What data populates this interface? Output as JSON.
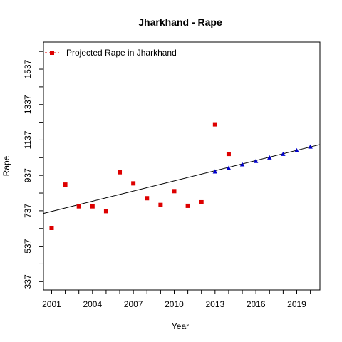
{
  "chart_data": {
    "type": "scatter",
    "title": "Jharkhand  -  Rape",
    "xlabel": "Year",
    "ylabel": "Rape",
    "xlim": [
      2000.4,
      2020.7
    ],
    "ylim": [
      290,
      1690
    ],
    "x_ticks": [
      2001,
      2002,
      2003,
      2004,
      2005,
      2006,
      2007,
      2008,
      2009,
      2010,
      2011,
      2012,
      2013,
      2014,
      2015,
      2016,
      2017,
      2018,
      2019,
      2020
    ],
    "x_tick_labels": [
      "2001",
      "2004",
      "2007",
      "2010",
      "2013",
      "2016",
      "2019"
    ],
    "x_tick_label_values": [
      2001,
      2004,
      2007,
      2010,
      2013,
      2016,
      2019
    ],
    "y_tick_labels": [
      "337",
      "537",
      "737",
      "937",
      "1137",
      "1337",
      "1537"
    ],
    "y_tick_values": [
      337,
      437,
      537,
      637,
      737,
      837,
      937,
      1037,
      1137,
      1237,
      1337,
      1437,
      1537,
      1637
    ],
    "legend": {
      "label": "Projected Rape in Jharkhand",
      "position": "top-left",
      "color": "#dd0000"
    },
    "series": [
      {
        "name": "Projected Rape in Jharkhand",
        "marker": "square",
        "color": "#dd0000",
        "x": [
          2001,
          2002,
          2003,
          2004,
          2005,
          2006,
          2007,
          2008,
          2009,
          2010,
          2011,
          2012,
          2013,
          2014
        ],
        "y": [
          640,
          885,
          762,
          762,
          735,
          955,
          892,
          808,
          770,
          848,
          765,
          785,
          1225,
          1058
        ]
      },
      {
        "marker": "triangle",
        "color": "#0000cc",
        "x": [
          2013,
          2014,
          2015,
          2016,
          2017,
          2018,
          2019,
          2020
        ],
        "y": [
          958,
          978,
          998,
          1017,
          1037,
          1057,
          1077,
          1098
        ]
      }
    ],
    "trend_line": {
      "x": [
        2000.4,
        2020.7
      ],
      "y": [
        722,
        1111
      ],
      "color": "#000000"
    },
    "grid": false
  }
}
